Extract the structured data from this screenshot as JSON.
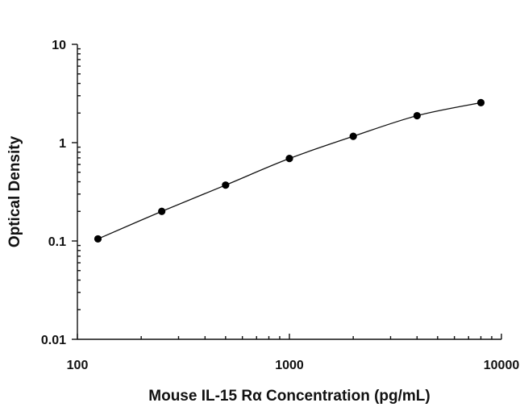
{
  "chart_data": {
    "type": "scatter",
    "title": "",
    "xlabel": "Mouse IL-15 Rα Concentration (pg/mL)",
    "ylabel": "Optical Density",
    "xscale": "log",
    "yscale": "log",
    "xlim": [
      100,
      10000
    ],
    "ylim": [
      0.01,
      10
    ],
    "xticks": [
      "100",
      "1000",
      "10000"
    ],
    "yticks": [
      "10",
      "1",
      "0.1",
      "0.01"
    ],
    "grid": false,
    "legend": "none",
    "curve_fit": true,
    "series": [
      {
        "x": [
          125,
          250,
          500,
          1000,
          2000,
          4000,
          8000
        ],
        "y": [
          0.105,
          0.2,
          0.37,
          0.69,
          1.16,
          1.88,
          2.55
        ]
      }
    ]
  }
}
